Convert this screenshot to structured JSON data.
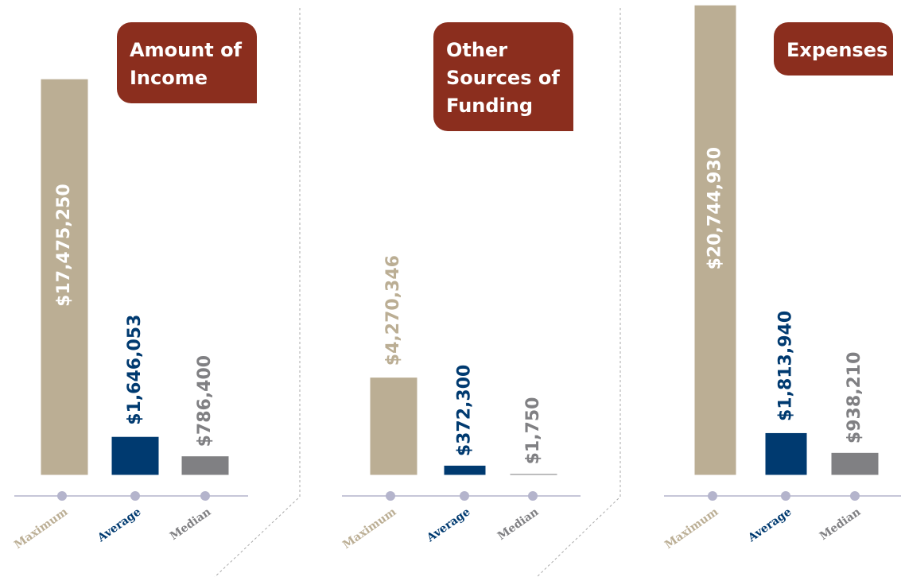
{
  "chart_data": [
    {
      "type": "bar",
      "title": "Amount of Income",
      "categories": [
        "Maximum",
        "Average",
        "Median"
      ],
      "values": [
        17475250,
        1646053,
        786400
      ],
      "value_labels": [
        "$17,475,250",
        "$1,646,053",
        "$786,400"
      ],
      "colors": [
        "#bbae94",
        "#003a70",
        "#808083"
      ],
      "ylim": [
        0,
        21000000
      ]
    },
    {
      "type": "bar",
      "title": "Other Sources of Funding",
      "categories": [
        "Maximum",
        "Average",
        "Median"
      ],
      "values": [
        4270346,
        372300,
        1750
      ],
      "value_labels": [
        "$4,270,346",
        "$372,300",
        "$1,750"
      ],
      "colors": [
        "#bbae94",
        "#003a70",
        "#808083"
      ],
      "ylim": [
        0,
        21000000
      ]
    },
    {
      "type": "bar",
      "title": "Expenses",
      "categories": [
        "Maximum",
        "Average",
        "Median"
      ],
      "values": [
        20744930,
        1813940,
        938210
      ],
      "value_labels": [
        "$20,744,930",
        "$1,813,940",
        "$938,210"
      ],
      "colors": [
        "#bbae94",
        "#003a70",
        "#808083"
      ],
      "ylim": [
        0,
        21000000
      ]
    }
  ]
}
